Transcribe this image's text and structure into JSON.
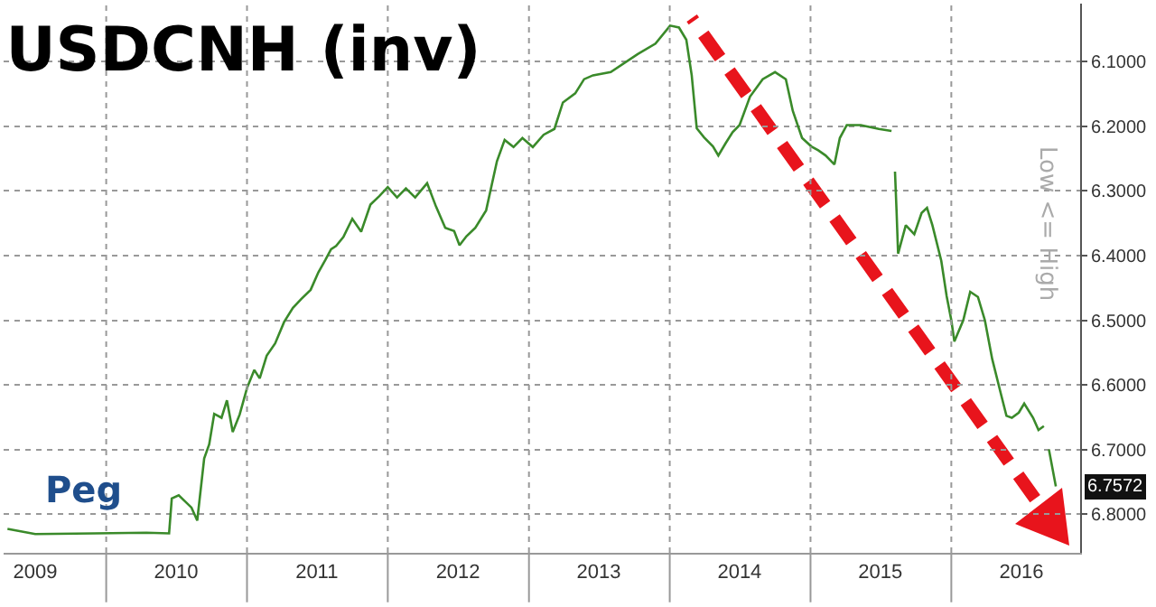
{
  "chart_data": {
    "type": "line",
    "title": "USDCNH (inv)",
    "x": [
      "2009-04-20",
      "2009-07-01",
      "2009-12-01",
      "2010-04-15",
      "2010-06-13",
      "2010-06-20",
      "2010-07-08",
      "2010-08-10",
      "2010-08-25",
      "2010-09-12",
      "2010-09-25",
      "2010-10-08",
      "2010-10-27",
      "2010-11-10",
      "2010-11-25",
      "2010-12-13",
      "2011-01-01",
      "2011-01-20",
      "2011-02-03",
      "2011-02-21",
      "2011-03-15",
      "2011-04-07",
      "2011-04-30",
      "2011-05-22",
      "2011-06-15",
      "2011-07-05",
      "2011-07-23",
      "2011-08-07",
      "2011-08-20",
      "2011-09-08",
      "2011-10-01",
      "2011-10-24",
      "2011-11-17",
      "2011-12-10",
      "2012-01-01",
      "2012-01-25",
      "2012-02-17",
      "2012-03-12",
      "2012-04-12",
      "2012-05-05",
      "2012-05-29",
      "2012-06-21",
      "2012-07-05",
      "2012-07-23",
      "2012-08-15",
      "2012-09-12",
      "2012-10-10",
      "2012-10-30",
      "2012-11-22",
      "2012-12-15",
      "2013-01-11",
      "2013-02-08",
      "2013-03-08",
      "2013-03-30",
      "2013-05-01",
      "2013-05-24",
      "2013-06-16",
      "2013-08-01",
      "2013-10-10",
      "2013-11-25",
      "2014-01-02",
      "2014-01-25",
      "2014-02-13",
      "2014-02-27",
      "2014-03-12",
      "2014-03-31",
      "2014-04-23",
      "2014-05-07",
      "2014-05-26",
      "2014-06-13",
      "2014-07-01",
      "2014-07-28",
      "2014-08-30",
      "2014-10-01",
      "2014-10-29",
      "2014-11-16",
      "2014-12-10",
      "2015-01-03",
      "2015-01-21",
      "2015-02-09",
      "2015-03-04",
      "2015-03-18",
      "2015-04-05",
      "2015-05-11",
      "2015-06-27",
      "2015-07-30",
      "2015-08-05",
      "2015-08-08",
      "2015-08-12",
      "2015-08-16",
      "2015-09-05",
      "2015-09-27",
      "2015-10-16",
      "2015-10-30",
      "2015-11-13",
      "2015-12-06",
      "2015-12-20",
      "2016-01-01",
      "2016-01-09",
      "2016-02-01",
      "2016-02-19",
      "2016-03-10",
      "2016-03-28",
      "2016-04-16",
      "2016-05-09",
      "2016-05-23",
      "2016-06-06",
      "2016-06-24",
      "2016-07-08",
      "2016-07-31",
      "2016-08-14",
      "2016-08-28",
      "2016-09-03",
      "2016-09-10",
      "2016-09-28"
    ],
    "series": [
      {
        "color": "#3a8a2a",
        "value_labels": [
          null,
          null,
          null,
          null,
          null,
          null,
          null,
          null,
          null,
          null,
          null,
          null,
          null,
          null,
          null,
          null,
          null,
          null,
          null,
          null,
          null,
          null,
          null,
          null,
          null,
          null,
          null,
          null,
          null,
          null,
          null,
          null,
          null,
          null,
          null,
          null,
          null,
          null,
          null,
          null,
          null,
          null,
          null,
          null,
          null,
          null,
          null,
          null,
          null,
          null,
          null,
          null,
          null,
          null,
          null,
          null,
          null,
          null,
          null,
          null,
          null,
          null,
          null,
          null,
          null,
          null,
          null,
          null,
          null,
          null,
          null,
          null,
          null,
          null,
          null,
          null,
          null,
          null,
          null,
          null,
          null,
          null,
          null,
          null,
          null,
          null,
          null,
          null,
          null,
          null,
          null,
          null,
          null,
          null,
          null,
          null,
          null,
          null,
          null,
          null,
          null,
          null,
          null,
          null,
          null,
          null,
          null,
          null,
          null,
          null,
          null,
          null,
          null,
          null,
          "6.7572"
        ],
        "values": [
          6.823,
          6.831,
          6.83,
          6.829,
          6.83,
          6.776,
          6.771,
          6.79,
          6.81,
          6.714,
          6.692,
          6.645,
          6.651,
          6.624,
          6.673,
          6.646,
          6.605,
          6.577,
          6.59,
          6.555,
          6.536,
          6.503,
          6.481,
          6.467,
          6.453,
          6.426,
          6.407,
          6.39,
          6.385,
          6.371,
          6.343,
          6.363,
          6.321,
          6.308,
          6.294,
          6.31,
          6.296,
          6.31,
          6.288,
          6.324,
          6.357,
          6.362,
          6.384,
          6.37,
          6.357,
          6.33,
          6.254,
          6.221,
          6.232,
          6.218,
          6.232,
          6.213,
          6.204,
          6.163,
          6.149,
          6.127,
          6.121,
          6.116,
          6.088,
          6.072,
          6.044,
          6.047,
          6.066,
          6.121,
          6.203,
          6.217,
          6.231,
          6.245,
          6.226,
          6.209,
          6.198,
          6.154,
          6.127,
          6.116,
          6.127,
          6.176,
          6.218,
          6.231,
          6.237,
          6.245,
          6.259,
          6.218,
          6.198,
          6.198,
          6.204,
          6.207,
          null,
          6.27,
          6.33,
          6.397,
          6.353,
          6.367,
          6.334,
          6.326,
          6.353,
          6.408,
          6.463,
          6.5,
          6.533,
          6.5,
          6.456,
          6.464,
          6.5,
          6.56,
          6.615,
          6.648,
          6.651,
          6.643,
          6.629,
          6.651,
          6.67,
          6.664,
          null,
          6.7,
          6.7572
        ]
      }
    ],
    "xlim": [
      "2009-04-10",
      "2016-11-30"
    ],
    "xticks": [
      {
        "value": "2009-07-01",
        "label": "2009"
      },
      {
        "value": "2010-01-01",
        "label": null
      },
      {
        "value": "2010-07-01",
        "label": "2010"
      },
      {
        "value": "2011-01-01",
        "label": null
      },
      {
        "value": "2011-07-01",
        "label": "2011"
      },
      {
        "value": "2012-01-01",
        "label": null
      },
      {
        "value": "2012-07-01",
        "label": "2012"
      },
      {
        "value": "2013-01-01",
        "label": null
      },
      {
        "value": "2013-07-01",
        "label": "2013"
      },
      {
        "value": "2014-01-01",
        "label": null
      },
      {
        "value": "2014-07-01",
        "label": "2014"
      },
      {
        "value": "2015-01-01",
        "label": null
      },
      {
        "value": "2015-07-01",
        "label": "2015"
      },
      {
        "value": "2016-01-01",
        "label": null
      },
      {
        "value": "2016-07-01",
        "label": "2016"
      }
    ],
    "ylim": [
      6.86,
      6.01
    ],
    "yticks": [
      {
        "value": 6.1,
        "label": "6.1000"
      },
      {
        "value": 6.2,
        "label": "6.2000"
      },
      {
        "value": 6.3,
        "label": "6.3000"
      },
      {
        "value": 6.4,
        "label": "6.4000"
      },
      {
        "value": 6.5,
        "label": "6.5000"
      },
      {
        "value": 6.6,
        "label": "6.6000"
      },
      {
        "value": 6.7,
        "label": "6.7000"
      },
      {
        "value": 6.8,
        "label": "6.8000"
      }
    ],
    "ylabel": "Low <= High",
    "annotations": [
      "Peg"
    ],
    "grid": true,
    "marker": "none",
    "line_style": "solid"
  }
}
